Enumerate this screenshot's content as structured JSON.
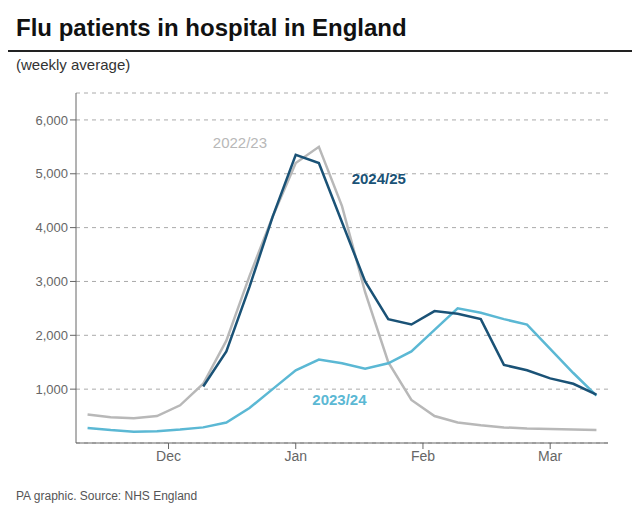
{
  "chart_data": {
    "type": "line",
    "title": "Flu patients in hospital in England",
    "subtitle": "(weekly average)",
    "source": "PA graphic. Source: NHS England",
    "x": [
      0,
      1,
      2,
      3,
      4,
      5,
      6,
      7,
      8,
      9,
      10,
      11,
      12,
      13,
      14,
      15,
      16,
      17,
      18,
      19,
      20,
      21,
      22
    ],
    "series": [
      {
        "name": "2022/23",
        "color": "#b8b8b8",
        "values": [
          530,
          480,
          460,
          500,
          700,
          1100,
          1900,
          3100,
          4200,
          5200,
          5500,
          4400,
          2800,
          1500,
          800,
          500,
          380,
          330,
          290,
          270,
          260,
          250,
          240
        ]
      },
      {
        "name": "2023/24",
        "color": "#5bb8d4",
        "values": [
          280,
          240,
          210,
          220,
          250,
          290,
          380,
          650,
          1000,
          1350,
          1550,
          1480,
          1380,
          1480,
          1700,
          2100,
          2500,
          2420,
          2300,
          2200,
          1750,
          1300,
          880
        ]
      },
      {
        "name": "2024/25",
        "color": "#1a5276",
        "values": [
          null,
          null,
          null,
          null,
          null,
          1050,
          1700,
          2900,
          4200,
          5350,
          5200,
          4100,
          3000,
          2300,
          2200,
          2450,
          2400,
          2300,
          1450,
          1350,
          1200,
          1100,
          900
        ]
      }
    ],
    "xlim": [
      -0.5,
      22.5
    ],
    "xticks": [
      {
        "value": 3.5,
        "label": "Dec"
      },
      {
        "value": 9,
        "label": "Jan"
      },
      {
        "value": 14.5,
        "label": "Feb"
      },
      {
        "value": 20,
        "label": "Mar"
      }
    ],
    "ylim": [
      0,
      6500
    ],
    "yticks": [
      {
        "value": 1000,
        "label": "1,000"
      },
      {
        "value": 2000,
        "label": "2,000"
      },
      {
        "value": 3000,
        "label": "3,000"
      },
      {
        "value": 4000,
        "label": "4,000"
      },
      {
        "value": 5000,
        "label": "5,000"
      },
      {
        "value": 6000,
        "label": "6,000"
      }
    ],
    "grid": true
  }
}
